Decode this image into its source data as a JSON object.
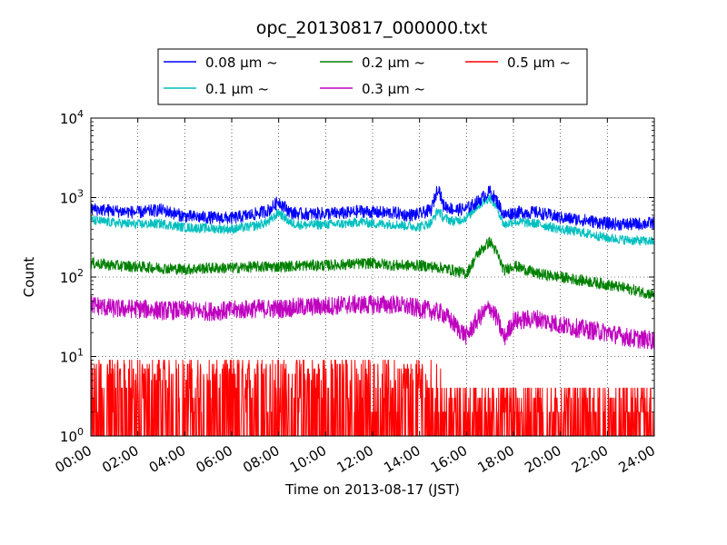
{
  "chart_data": {
    "type": "line",
    "title": "opc_20130817_000000.txt",
    "xlabel": "Time on 2013-08-17 (JST)",
    "ylabel": "Count",
    "x_unit": "hours (JST)",
    "xlim": [
      0,
      24
    ],
    "ylim": [
      1,
      10000
    ],
    "yscale": "log",
    "grid": true,
    "legend_position": "top, above plot",
    "x_tick_labels": [
      "00:00",
      "02:00",
      "04:00",
      "06:00",
      "08:00",
      "10:00",
      "12:00",
      "14:00",
      "16:00",
      "18:00",
      "20:00",
      "22:00",
      "24:00"
    ],
    "y_tick_labels": [
      {
        "base": "10",
        "exp": "0"
      },
      {
        "base": "10",
        "exp": "1"
      },
      {
        "base": "10",
        "exp": "2"
      },
      {
        "base": "10",
        "exp": "3"
      },
      {
        "base": "10",
        "exp": "4"
      }
    ],
    "series": [
      {
        "name": "0.08 μm ~",
        "color": "#0000ff",
        "noise": 0.08,
        "points": [
          [
            0,
            720
          ],
          [
            1,
            680
          ],
          [
            2,
            650
          ],
          [
            3,
            700
          ],
          [
            4,
            580
          ],
          [
            5,
            560
          ],
          [
            6,
            550
          ],
          [
            7,
            620
          ],
          [
            7.6,
            700
          ],
          [
            8,
            900
          ],
          [
            8.5,
            650
          ],
          [
            9,
            620
          ],
          [
            10,
            630
          ],
          [
            11,
            640
          ],
          [
            11.5,
            680
          ],
          [
            12,
            650
          ],
          [
            13,
            640
          ],
          [
            13.5,
            600
          ],
          [
            14,
            620
          ],
          [
            14.5,
            700
          ],
          [
            14.8,
            1400
          ],
          [
            15,
            800
          ],
          [
            15.5,
            700
          ],
          [
            16,
            720
          ],
          [
            16.5,
            900
          ],
          [
            17,
            1200
          ],
          [
            17.3,
            900
          ],
          [
            17.6,
            600
          ],
          [
            18,
            650
          ],
          [
            19,
            650
          ],
          [
            20,
            560
          ],
          [
            21,
            520
          ],
          [
            22,
            470
          ],
          [
            23,
            460
          ],
          [
            24,
            480
          ]
        ]
      },
      {
        "name": "0.1 μm ~",
        "color": "#00bfbf",
        "noise": 0.06,
        "points": [
          [
            0,
            520
          ],
          [
            1,
            480
          ],
          [
            2,
            460
          ],
          [
            3,
            470
          ],
          [
            4,
            420
          ],
          [
            5,
            410
          ],
          [
            6,
            400
          ],
          [
            7,
            440
          ],
          [
            7.6,
            500
          ],
          [
            8,
            650
          ],
          [
            8.5,
            480
          ],
          [
            9,
            450
          ],
          [
            10,
            460
          ],
          [
            11,
            470
          ],
          [
            11.5,
            500
          ],
          [
            12,
            470
          ],
          [
            13,
            460
          ],
          [
            13.5,
            440
          ],
          [
            14,
            430
          ],
          [
            14.5,
            480
          ],
          [
            14.8,
            700
          ],
          [
            15,
            560
          ],
          [
            15.5,
            500
          ],
          [
            16,
            560
          ],
          [
            16.5,
            800
          ],
          [
            17,
            1000
          ],
          [
            17.3,
            750
          ],
          [
            17.6,
            450
          ],
          [
            18,
            500
          ],
          [
            19,
            470
          ],
          [
            20,
            400
          ],
          [
            21,
            360
          ],
          [
            22,
            310
          ],
          [
            23,
            290
          ],
          [
            24,
            280
          ]
        ]
      },
      {
        "name": "0.2 μm ~",
        "color": "#008000",
        "noise": 0.07,
        "points": [
          [
            0,
            150
          ],
          [
            1,
            140
          ],
          [
            2,
            135
          ],
          [
            3,
            130
          ],
          [
            4,
            125
          ],
          [
            5,
            130
          ],
          [
            6,
            130
          ],
          [
            7,
            135
          ],
          [
            8,
            135
          ],
          [
            9,
            140
          ],
          [
            10,
            140
          ],
          [
            11,
            145
          ],
          [
            12,
            150
          ],
          [
            13,
            140
          ],
          [
            14,
            140
          ],
          [
            15,
            130
          ],
          [
            15.5,
            120
          ],
          [
            16,
            110
          ],
          [
            16.5,
            200
          ],
          [
            17,
            280
          ],
          [
            17.3,
            200
          ],
          [
            17.6,
            120
          ],
          [
            18,
            140
          ],
          [
            19,
            110
          ],
          [
            20,
            100
          ],
          [
            21,
            90
          ],
          [
            22,
            80
          ],
          [
            23,
            70
          ],
          [
            24,
            60
          ]
        ]
      },
      {
        "name": "0.3 μm ~",
        "color": "#bf00bf",
        "noise": 0.12,
        "points": [
          [
            0,
            45
          ],
          [
            1,
            40
          ],
          [
            2,
            40
          ],
          [
            3,
            38
          ],
          [
            4,
            38
          ],
          [
            5,
            37
          ],
          [
            6,
            38
          ],
          [
            7,
            40
          ],
          [
            8,
            40
          ],
          [
            9,
            42
          ],
          [
            10,
            43
          ],
          [
            11,
            45
          ],
          [
            12,
            45
          ],
          [
            13,
            45
          ],
          [
            14,
            40
          ],
          [
            15,
            35
          ],
          [
            15.5,
            25
          ],
          [
            16,
            18
          ],
          [
            16.5,
            30
          ],
          [
            17,
            42
          ],
          [
            17.3,
            30
          ],
          [
            17.6,
            17
          ],
          [
            18,
            28
          ],
          [
            19,
            30
          ],
          [
            20,
            25
          ],
          [
            21,
            22
          ],
          [
            22,
            20
          ],
          [
            23,
            17
          ],
          [
            24,
            16
          ]
        ]
      },
      {
        "name": "0.5 μm ~",
        "color": "#ff0000",
        "noise": 0.5,
        "points": [
          [
            0,
            3
          ],
          [
            6,
            3
          ],
          [
            12,
            3
          ],
          [
            15,
            2.8
          ],
          [
            16,
            2.2
          ],
          [
            18,
            2
          ],
          [
            21,
            2
          ],
          [
            24,
            2
          ]
        ]
      }
    ]
  }
}
